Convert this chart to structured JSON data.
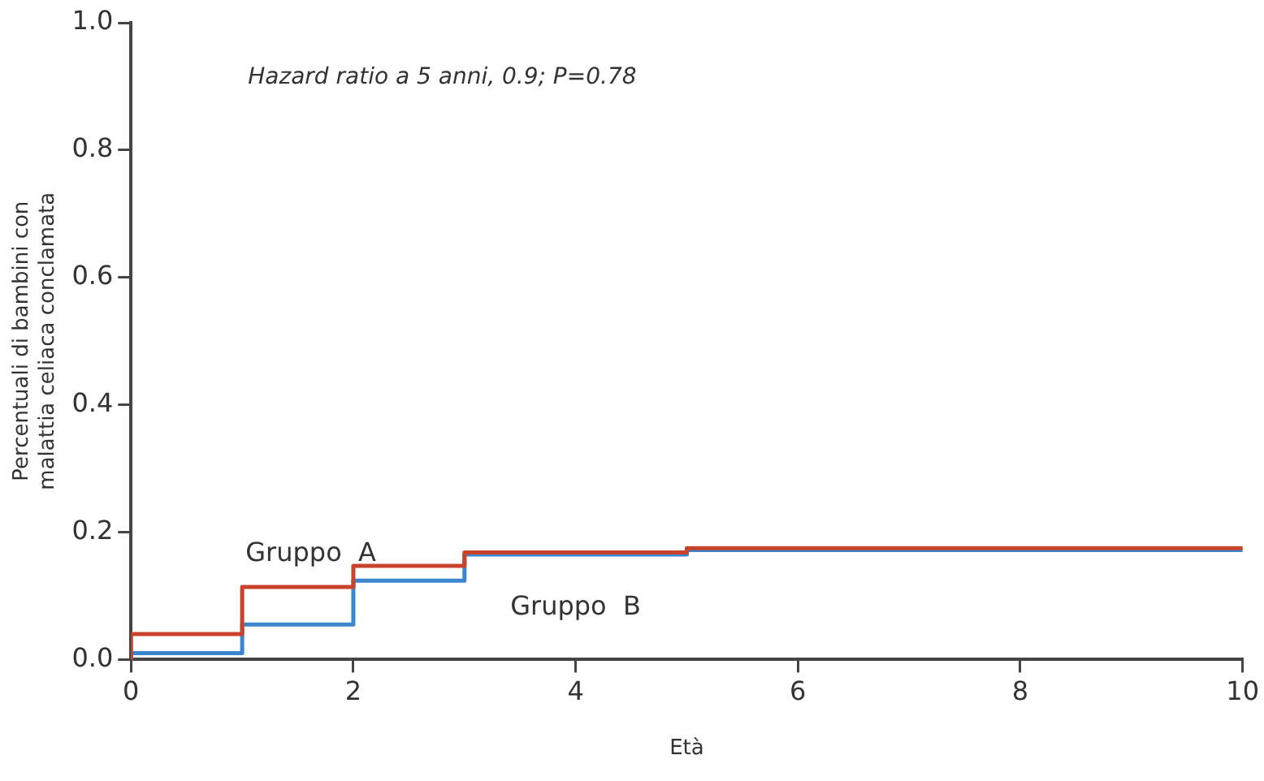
{
  "chart_data": {
    "type": "step",
    "xlabel": "Età",
    "ylabel": "Percentuali di bambini con\nmalattia celiaca conclamata",
    "annotations": [
      "Hazard ratio a 5 anni, 0.9; P=0.78"
    ],
    "series": [
      {
        "name": "Gruppo  A",
        "color": "#c8432a",
        "x": [
          0,
          1,
          2,
          3,
          5,
          8,
          10
        ],
        "values": [
          0,
          0.04,
          0.114,
          0.147,
          0.168,
          0.175,
          0.175
        ]
      },
      {
        "name": "Gruppo  B",
        "color": "#3a87d0",
        "x": [
          0,
          1,
          2,
          3,
          5,
          7,
          10
        ],
        "values": [
          0,
          0.01,
          0.055,
          0.124,
          0.165,
          0.172,
          0.172
        ]
      }
    ],
    "xlim": [
      0,
      10
    ],
    "xticks": [
      0,
      2,
      4,
      6,
      8,
      10
    ],
    "ylim": [
      0,
      1
    ],
    "yticks": [
      {
        "value": 0,
        "label": "0.0"
      },
      {
        "value": 0.2,
        "label": "0.2"
      },
      {
        "value": 0.4,
        "label": "0.4"
      },
      {
        "value": 0.6,
        "label": "0.6"
      },
      {
        "value": 0.8,
        "label": "0.8"
      },
      {
        "value": 1,
        "label": "1.0"
      }
    ],
    "grid": false,
    "legend": false
  }
}
